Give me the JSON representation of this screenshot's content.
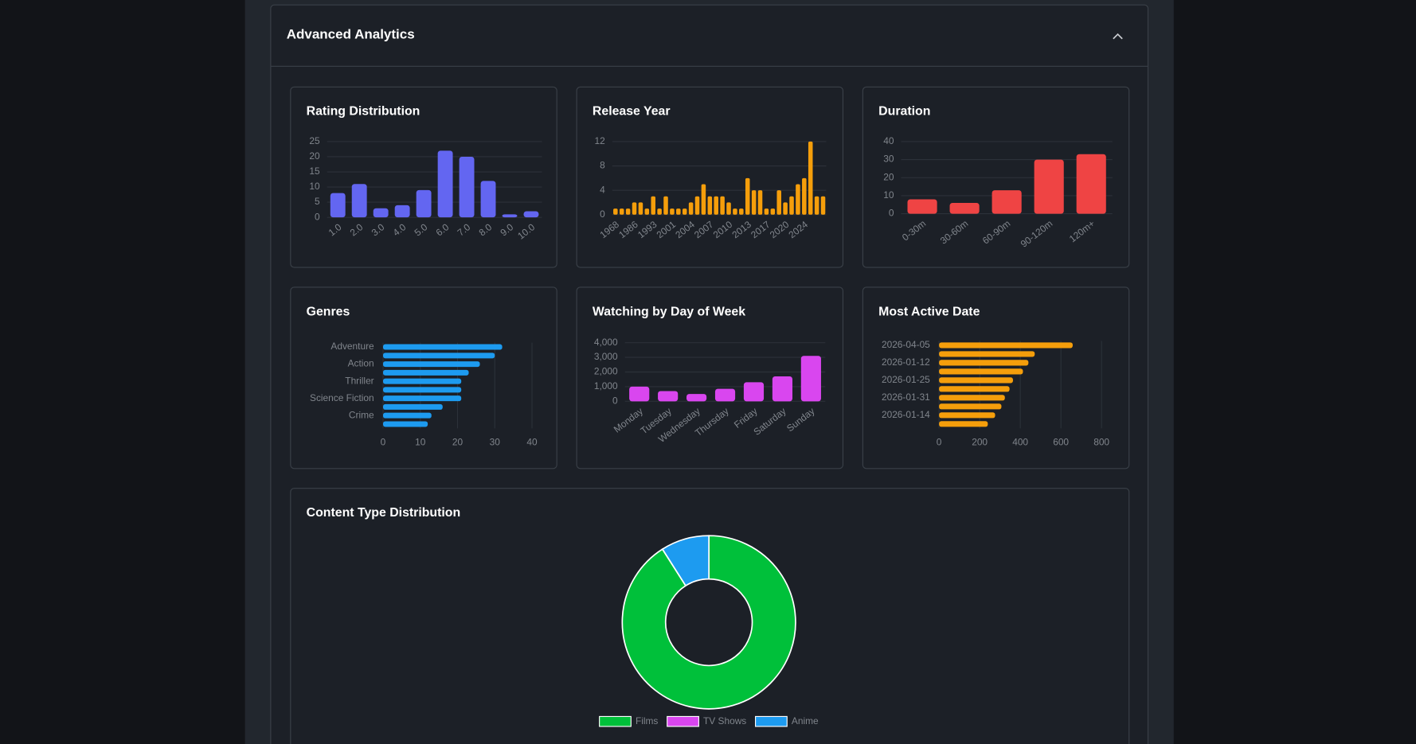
{
  "header": {
    "title": "Advanced Analytics"
  },
  "chart_data": [
    {
      "type": "bar",
      "orientation": "vertical",
      "title": "Rating Distribution",
      "categories": [
        "1.0",
        "2.0",
        "3.0",
        "4.0",
        "5.0",
        "6.0",
        "7.0",
        "8.0",
        "9.0",
        "10.0"
      ],
      "values": [
        8,
        11,
        3,
        4,
        9,
        22,
        20,
        12,
        1,
        2
      ],
      "color": "#6366f1",
      "ylim": [
        0,
        25
      ],
      "yticks": [
        0,
        5,
        10,
        15,
        20,
        25
      ],
      "grid": true
    },
    {
      "type": "bar",
      "orientation": "vertical",
      "title": "Release Year",
      "categories": [
        "1968",
        null,
        null,
        "1986",
        null,
        null,
        "1993",
        null,
        null,
        "2001",
        null,
        null,
        "2004",
        null,
        null,
        "2007",
        null,
        null,
        "2010",
        null,
        null,
        "2013",
        null,
        null,
        "2017",
        null,
        null,
        "2020",
        null,
        null,
        "2024",
        null,
        null,
        null
      ],
      "values": [
        1,
        1,
        1,
        2,
        2,
        1,
        3,
        1,
        3,
        1,
        1,
        1,
        2,
        3,
        5,
        3,
        3,
        3,
        2,
        1,
        1,
        6,
        4,
        4,
        1,
        1,
        4,
        2,
        3,
        5,
        6,
        12,
        3,
        3
      ],
      "color": "#f59e0b",
      "ylim": [
        0,
        12
      ],
      "yticks": [
        0,
        4,
        8,
        12
      ],
      "grid": true
    },
    {
      "type": "bar",
      "orientation": "vertical",
      "title": "Duration",
      "categories": [
        "0-30m",
        "30-60m",
        "60-90m",
        "90-120m",
        "120m+"
      ],
      "values": [
        8,
        6,
        13,
        30,
        33
      ],
      "color": "#ef4444",
      "ylim": [
        0,
        40
      ],
      "yticks": [
        0,
        10,
        20,
        30,
        40
      ],
      "grid": true
    },
    {
      "type": "bar",
      "orientation": "horizontal",
      "title": "Genres",
      "categories": [
        "Adventure",
        null,
        "Action",
        null,
        "Thriller",
        null,
        "Science Fiction",
        null,
        "Crime",
        null
      ],
      "values": [
        32,
        30,
        26,
        23,
        21,
        21,
        21,
        16,
        13,
        12
      ],
      "color": "#1d9bf0",
      "xlim": [
        0,
        40
      ],
      "xticks": [
        0,
        10,
        20,
        30,
        40
      ],
      "grid": true
    },
    {
      "type": "bar",
      "orientation": "vertical",
      "title": "Watching by Day of Week",
      "categories": [
        "Monday",
        "Tuesday",
        "Wednesday",
        "Thursday",
        "Friday",
        "Saturday",
        "Sunday"
      ],
      "values": [
        1000,
        700,
        500,
        850,
        1300,
        1700,
        3100
      ],
      "color": "#d946ef",
      "ylim": [
        0,
        4000
      ],
      "yticks": [
        0,
        {
          "value": 1000,
          "label": "1,000"
        },
        {
          "value": 2000,
          "label": "2,000"
        },
        {
          "value": 3000,
          "label": "3,000"
        },
        {
          "value": 4000,
          "label": "4,000"
        }
      ],
      "grid": true
    },
    {
      "type": "bar",
      "orientation": "horizontal",
      "title": "Most Active Date",
      "categories": [
        "2026-04-05",
        null,
        "2026-01-12",
        null,
        "2026-01-25",
        null,
        "2026-01-31",
        null,
        "2026-01-14",
        null
      ],
      "values": [
        658,
        471,
        440,
        413,
        364,
        347,
        324,
        307,
        276,
        240
      ],
      "color": "#f59e0b",
      "xlim": [
        0,
        800
      ],
      "xticks": [
        0,
        200,
        400,
        600,
        800
      ],
      "grid": true
    },
    {
      "type": "doughnut",
      "title": "Content Type Distribution",
      "categories": [
        "Films",
        "TV Shows",
        "Anime"
      ],
      "values": [
        91,
        0,
        9
      ],
      "colors": [
        "#00c03a",
        "#d946ef",
        "#1d9bf0"
      ],
      "legend": "bottom"
    }
  ]
}
